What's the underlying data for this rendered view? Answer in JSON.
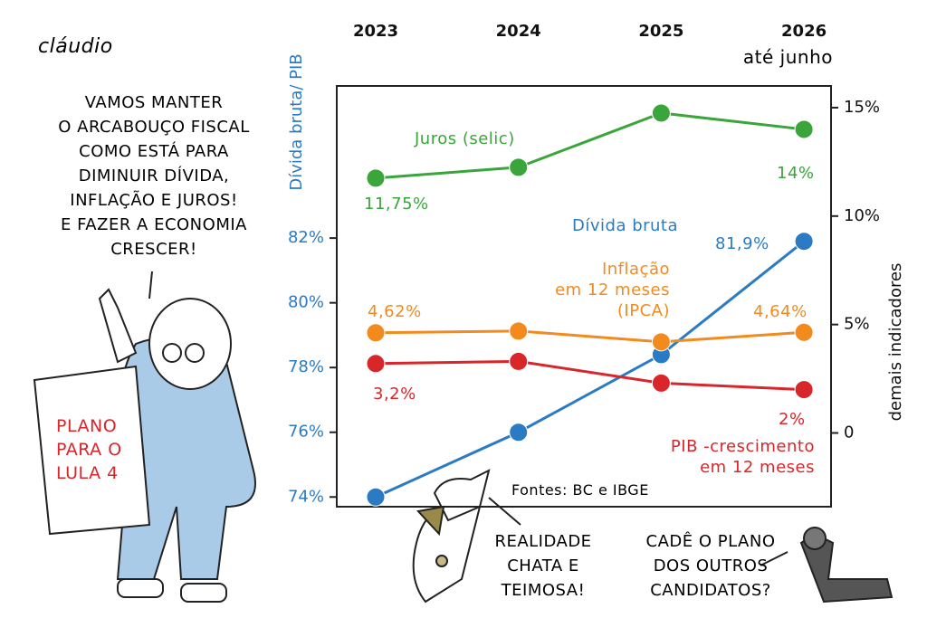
{
  "chart_data": {
    "type": "line",
    "categories": [
      "2023",
      "2024",
      "2025",
      "2026"
    ],
    "x_note": "até junho",
    "ylabel": "Dívida bruta/ PIB",
    "y2label": "demais indicadores",
    "source": "Fontes: BC e IBGE",
    "ylim": [
      73.7,
      86.7
    ],
    "yticks": [
      {
        "value": 74,
        "label": "74%"
      },
      {
        "value": 76,
        "label": "76%"
      },
      {
        "value": 78,
        "label": "78%"
      },
      {
        "value": 80,
        "label": "80%"
      },
      {
        "value": 82,
        "label": "82%"
      }
    ],
    "y2lim": [
      -3.4,
      16
    ],
    "y2ticks": [
      0,
      {
        "value": 5,
        "label": "5%"
      },
      {
        "value": 10,
        "label": "10%"
      },
      {
        "value": 15,
        "label": "15%"
      }
    ],
    "series": [
      {
        "name": "Dívida bruta",
        "color": "#2b7bc4",
        "values": [
          74,
          76,
          78.4,
          81.9
        ],
        "value_labels": [
          null,
          null,
          null,
          "81,9%"
        ]
      },
      {
        "name": "Juros (selic)",
        "color": "#3aa53a",
        "axis": "y2",
        "values": [
          11.75,
          12.25,
          14.75,
          14
        ],
        "value_labels": [
          "11,75%",
          null,
          null,
          "14%"
        ]
      },
      {
        "name": "Inflação\nem 12 meses\n(IPCA)",
        "color": "#f28a1e",
        "axis": "y2",
        "values": [
          4.62,
          4.7,
          4.2,
          4.64
        ],
        "value_labels": [
          "4,62%",
          null,
          null,
          "4,64%"
        ]
      },
      {
        "name": "PIB -crescimento\nem 12 meses",
        "color": "#d8262b",
        "axis": "y2",
        "values": [
          3.2,
          3.3,
          2.3,
          2
        ],
        "value_labels": [
          "3,2%",
          null,
          null,
          "2%"
        ]
      }
    ]
  },
  "cartoon": {
    "signature": "cláudio",
    "speech": "VAMOS MANTER\nO ARCABOUÇO FISCAL\nCOMO ESTÁ PARA\nDIMINUIR DÍVIDA,\nINFLAÇÃO E JUROS!\nE FAZER A ECONOMIA\nCRESCER!",
    "paper": "PLANO\nPARA O\nLULA 4",
    "dog_left": "REALIDADE\nCHATA E\nTEIMOSA!",
    "dog_right": "CADÊ O PLANO\nDOS OUTROS\nCANDIDATOS?"
  }
}
